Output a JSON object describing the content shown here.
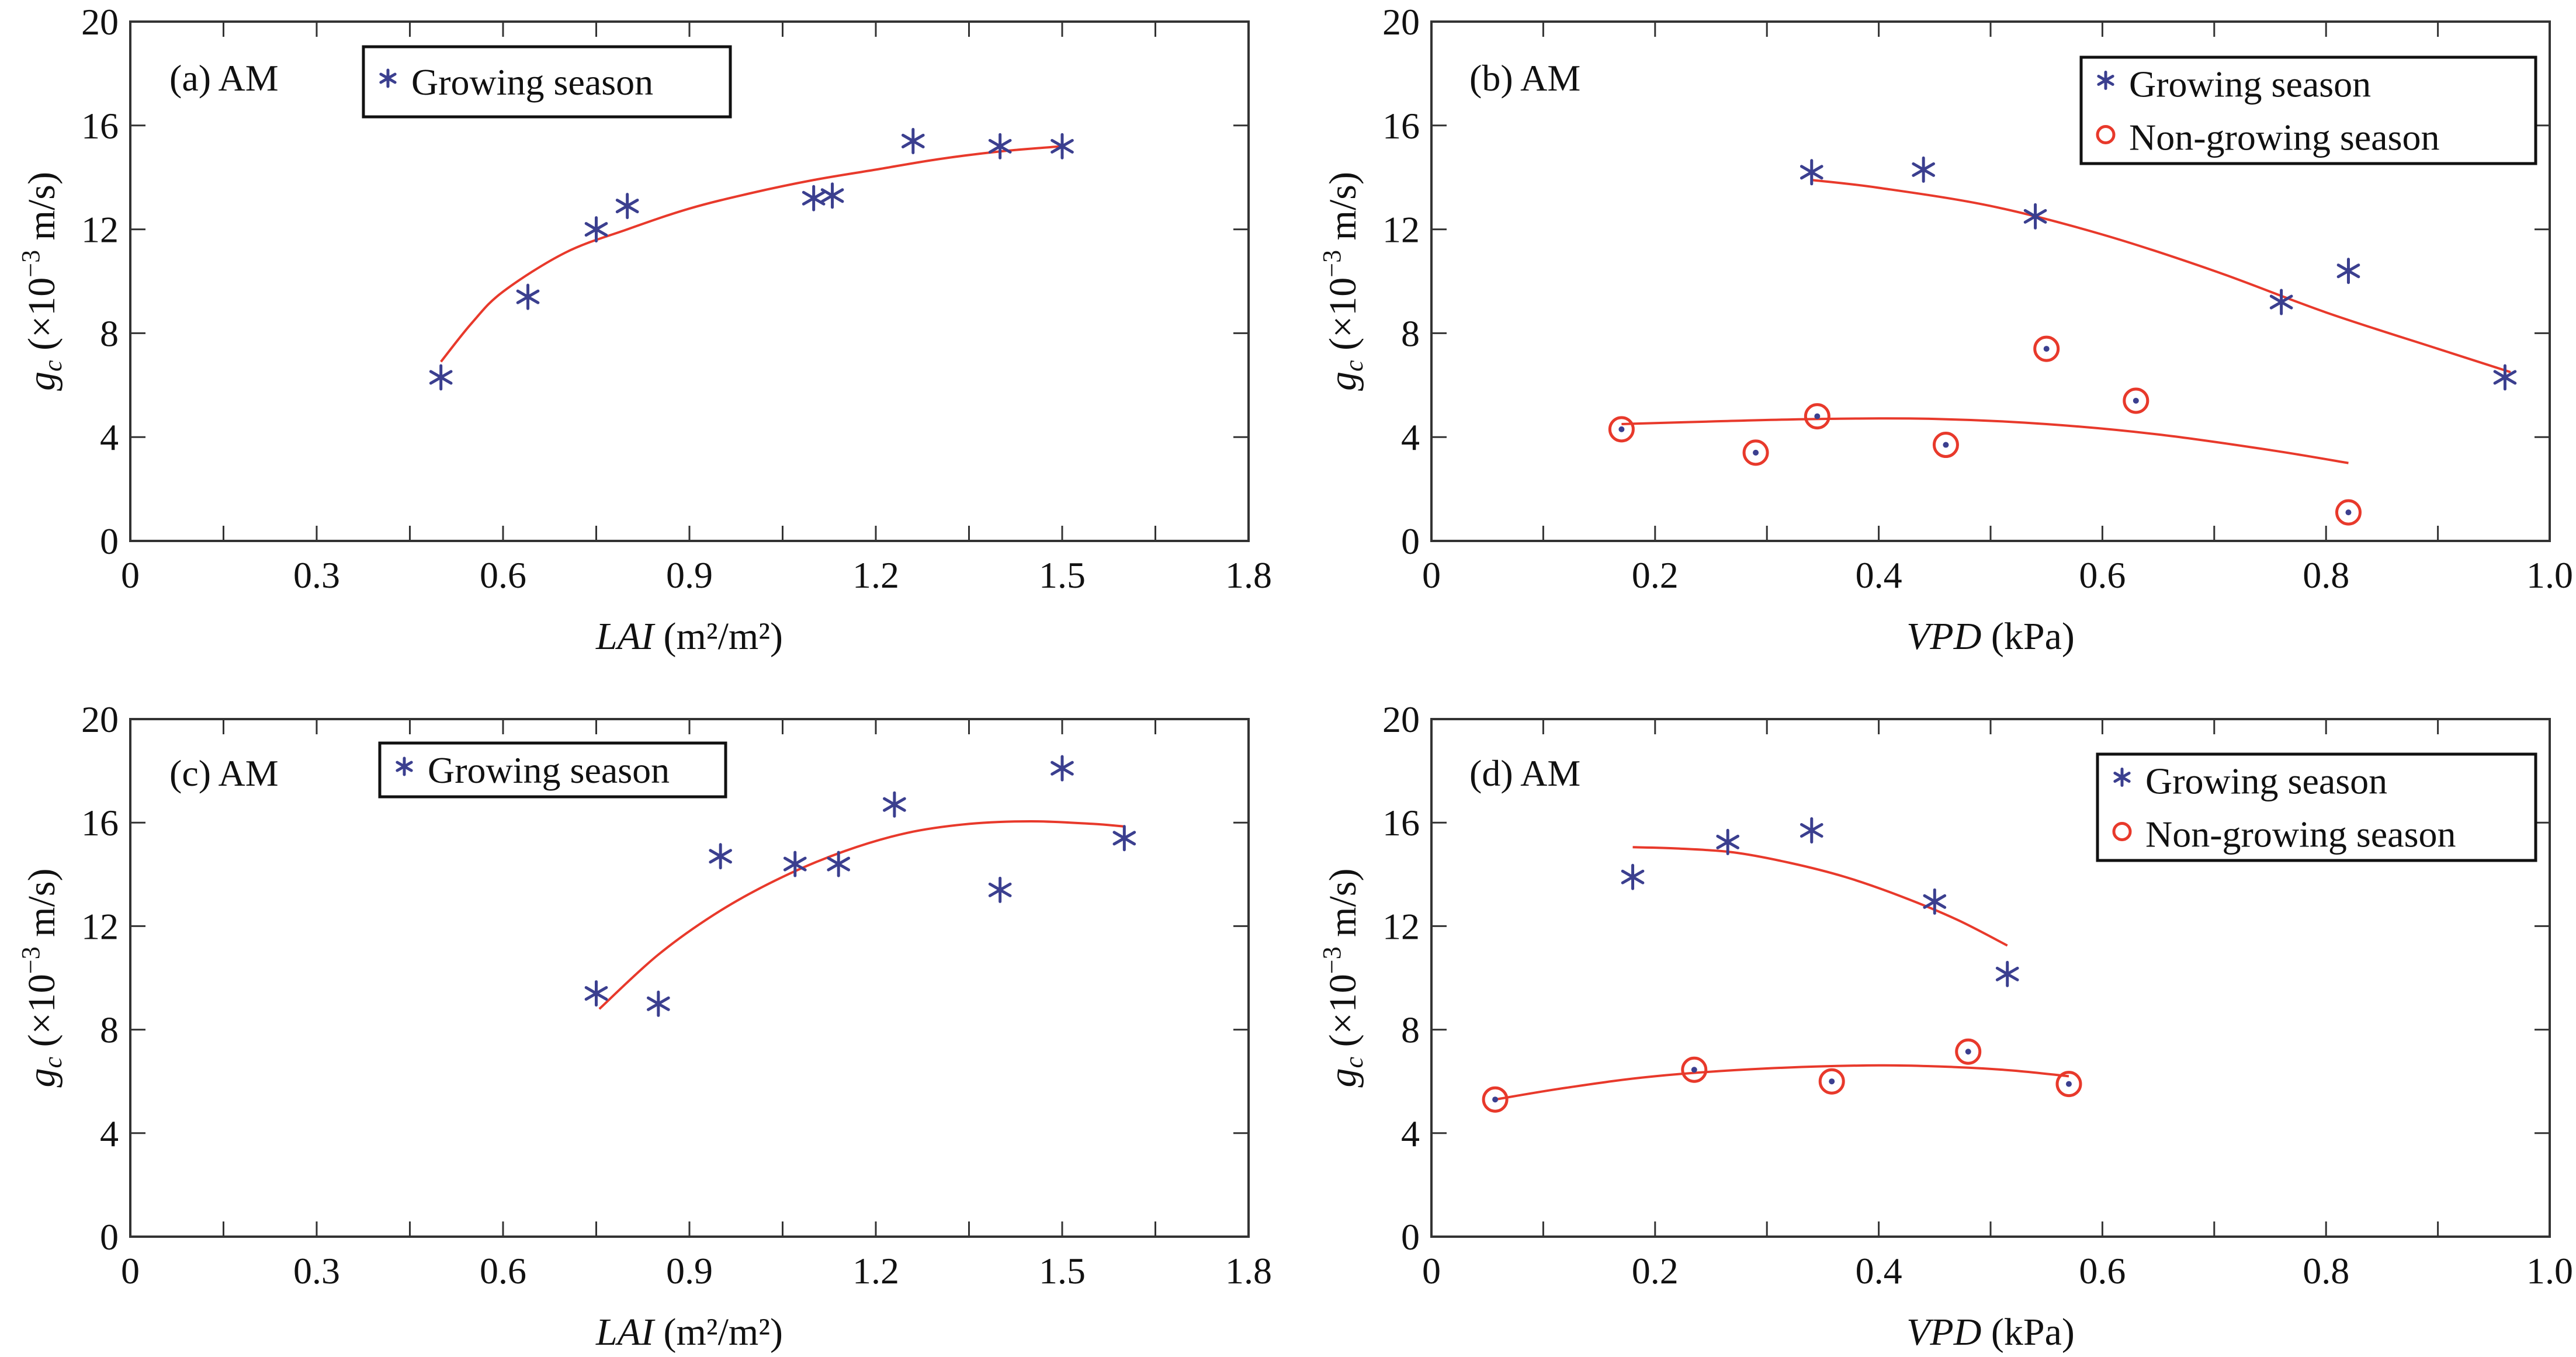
{
  "chart_data": [
    {
      "id": "a",
      "type": "scatter",
      "panel_label": "(a) AM",
      "xlabel_italic": "LAI",
      "xlabel_unit": " (m²/m²)",
      "ylabel": "gc (×10⁻³ m/s)",
      "ylabel_parts": {
        "main": "g",
        "sub": "c",
        "rest": " (×10",
        "sup": "−3",
        "tail": " m/s)"
      },
      "xlim": [
        0,
        1.8
      ],
      "ylim": [
        0,
        20
      ],
      "xticks": [
        0,
        0.3,
        0.6,
        0.9,
        1.2,
        1.5,
        1.8
      ],
      "xtick_labels": [
        "0",
        "0.3",
        "0.6",
        "0.9",
        "1.2",
        "1.5",
        "1.8"
      ],
      "xminor": [
        0.15,
        0.45,
        0.75,
        1.05,
        1.35,
        1.65
      ],
      "yticks": [
        0,
        4,
        8,
        12,
        16,
        20
      ],
      "ytick_labels": [
        "0",
        "4",
        "8",
        "12",
        "16",
        "20"
      ],
      "legend_position": "top-center",
      "series": [
        {
          "name": "Growing season",
          "marker": "asterisk",
          "color": "#3b3f8f",
          "points": [
            [
              0.5,
              6.3
            ],
            [
              0.64,
              9.4
            ],
            [
              0.75,
              12.0
            ],
            [
              0.8,
              12.9
            ],
            [
              1.1,
              13.2
            ],
            [
              1.13,
              13.3
            ],
            [
              1.26,
              15.4
            ],
            [
              1.4,
              15.2
            ],
            [
              1.5,
              15.2
            ]
          ],
          "fit": [
            [
              0.5,
              6.9
            ],
            [
              0.55,
              8.4
            ],
            [
              0.6,
              9.6
            ],
            [
              0.7,
              11.1
            ],
            [
              0.8,
              12.0
            ],
            [
              0.9,
              12.8
            ],
            [
              1.0,
              13.4
            ],
            [
              1.1,
              13.9
            ],
            [
              1.2,
              14.3
            ],
            [
              1.3,
              14.7
            ],
            [
              1.4,
              15.0
            ],
            [
              1.5,
              15.2
            ]
          ]
        }
      ]
    },
    {
      "id": "b",
      "type": "scatter",
      "panel_label": "(b) AM",
      "xlabel_italic": "VPD",
      "xlabel_unit": " (kPa)",
      "ylabel": "gc (×10⁻³ m/s)",
      "ylabel_parts": {
        "main": "g",
        "sub": "c",
        "rest": " (×10",
        "sup": "−3",
        "tail": " m/s)"
      },
      "xlim": [
        0,
        1.0
      ],
      "ylim": [
        0,
        20
      ],
      "xticks": [
        0,
        0.2,
        0.4,
        0.6,
        0.8,
        1.0
      ],
      "xtick_labels": [
        "0",
        "0.2",
        "0.4",
        "0.6",
        "0.8",
        "1.0"
      ],
      "xminor": [
        0.1,
        0.3,
        0.5,
        0.7,
        0.9
      ],
      "yticks": [
        0,
        4,
        8,
        12,
        16,
        20
      ],
      "ytick_labels": [
        "0",
        "4",
        "8",
        "12",
        "16",
        "20"
      ],
      "legend_position": "top-right",
      "series": [
        {
          "name": "Growing season",
          "marker": "asterisk",
          "color": "#3b3f8f",
          "points": [
            [
              0.34,
              14.2
            ],
            [
              0.44,
              14.3
            ],
            [
              0.54,
              12.5
            ],
            [
              0.76,
              9.2
            ],
            [
              0.82,
              10.4
            ],
            [
              0.96,
              6.3
            ]
          ],
          "fit": [
            [
              0.34,
              13.9
            ],
            [
              0.4,
              13.6
            ],
            [
              0.5,
              12.9
            ],
            [
              0.6,
              11.8
            ],
            [
              0.7,
              10.4
            ],
            [
              0.8,
              8.8
            ],
            [
              0.9,
              7.4
            ],
            [
              0.965,
              6.5
            ]
          ]
        },
        {
          "name": "Non-growing season",
          "marker": "circle",
          "color": "#e8392b",
          "points": [
            [
              0.17,
              4.3
            ],
            [
              0.29,
              3.4
            ],
            [
              0.345,
              4.8
            ],
            [
              0.46,
              3.7
            ],
            [
              0.55,
              7.4
            ],
            [
              0.63,
              5.4
            ],
            [
              0.82,
              1.1
            ]
          ],
          "fit": [
            [
              0.17,
              4.5
            ],
            [
              0.25,
              4.6
            ],
            [
              0.35,
              4.7
            ],
            [
              0.45,
              4.7
            ],
            [
              0.55,
              4.5
            ],
            [
              0.65,
              4.1
            ],
            [
              0.75,
              3.5
            ],
            [
              0.82,
              3.0
            ]
          ]
        }
      ]
    },
    {
      "id": "c",
      "type": "scatter",
      "panel_label": "(c) AM",
      "xlabel_italic": "LAI",
      "xlabel_unit": " (m²/m²)",
      "ylabel": "gc (×10⁻³ m/s)",
      "ylabel_parts": {
        "main": "g",
        "sub": "c",
        "rest": " (×10",
        "sup": "−3",
        "tail": " m/s)"
      },
      "xlim": [
        0,
        1.8
      ],
      "ylim": [
        0,
        20
      ],
      "xticks": [
        0,
        0.3,
        0.6,
        0.9,
        1.2,
        1.5,
        1.8
      ],
      "xtick_labels": [
        "0",
        "0.3",
        "0.6",
        "0.9",
        "1.2",
        "1.5",
        "1.8"
      ],
      "xminor": [
        0.15,
        0.45,
        0.75,
        1.05,
        1.35,
        1.65
      ],
      "yticks": [
        0,
        4,
        8,
        12,
        16,
        20
      ],
      "ytick_labels": [
        "0",
        "4",
        "8",
        "12",
        "16",
        "20"
      ],
      "legend_position": "top-center",
      "series": [
        {
          "name": "Growing season",
          "marker": "asterisk",
          "color": "#3b3f8f",
          "points": [
            [
              0.75,
              9.4
            ],
            [
              0.85,
              9.0
            ],
            [
              0.95,
              14.7
            ],
            [
              1.07,
              14.4
            ],
            [
              1.14,
              14.4
            ],
            [
              1.23,
              16.7
            ],
            [
              1.4,
              13.4
            ],
            [
              1.5,
              18.1
            ],
            [
              1.6,
              15.4
            ]
          ],
          "fit": [
            [
              0.755,
              8.8
            ],
            [
              0.85,
              10.9
            ],
            [
              0.95,
              12.6
            ],
            [
              1.05,
              13.9
            ],
            [
              1.15,
              14.9
            ],
            [
              1.25,
              15.6
            ],
            [
              1.35,
              15.95
            ],
            [
              1.45,
              16.05
            ],
            [
              1.55,
              15.95
            ],
            [
              1.6,
              15.85
            ]
          ]
        }
      ]
    },
    {
      "id": "d",
      "type": "scatter",
      "panel_label": "(d) AM",
      "xlabel_italic": "VPD",
      "xlabel_unit": " (kPa)",
      "ylabel": "gc (×10⁻³ m/s)",
      "ylabel_parts": {
        "main": "g",
        "sub": "c",
        "rest": " (×10",
        "sup": "−3",
        "tail": " m/s)"
      },
      "xlim": [
        0,
        1.0
      ],
      "ylim": [
        0,
        20
      ],
      "xticks": [
        0,
        0.2,
        0.4,
        0.6,
        0.8,
        1.0
      ],
      "xtick_labels": [
        "0",
        "0.2",
        "0.4",
        "0.6",
        "0.8",
        "1.0"
      ],
      "xminor": [
        0.1,
        0.3,
        0.5,
        0.7,
        0.9
      ],
      "yticks": [
        0,
        4,
        8,
        12,
        16,
        20
      ],
      "ytick_labels": [
        "0",
        "4",
        "8",
        "12",
        "16",
        "20"
      ],
      "legend_position": "top-right",
      "series": [
        {
          "name": "Growing season",
          "marker": "asterisk",
          "color": "#3b3f8f",
          "points": [
            [
              0.18,
              13.9
            ],
            [
              0.265,
              15.25
            ],
            [
              0.34,
              15.7
            ],
            [
              0.45,
              12.95
            ],
            [
              0.515,
              10.15
            ]
          ],
          "fit": [
            [
              0.18,
              15.05
            ],
            [
              0.22,
              15.0
            ],
            [
              0.27,
              14.85
            ],
            [
              0.32,
              14.45
            ],
            [
              0.37,
              13.9
            ],
            [
              0.42,
              13.15
            ],
            [
              0.47,
              12.25
            ],
            [
              0.515,
              11.25
            ]
          ]
        },
        {
          "name": "Non-growing season",
          "marker": "circle",
          "color": "#e8392b",
          "points": [
            [
              0.057,
              5.3
            ],
            [
              0.235,
              6.45
            ],
            [
              0.358,
              6.0
            ],
            [
              0.48,
              7.15
            ],
            [
              0.57,
              5.9
            ]
          ],
          "fit": [
            [
              0.057,
              5.3
            ],
            [
              0.12,
              5.75
            ],
            [
              0.2,
              6.2
            ],
            [
              0.3,
              6.5
            ],
            [
              0.4,
              6.62
            ],
            [
              0.47,
              6.55
            ],
            [
              0.52,
              6.42
            ],
            [
              0.57,
              6.2
            ]
          ]
        }
      ]
    }
  ]
}
